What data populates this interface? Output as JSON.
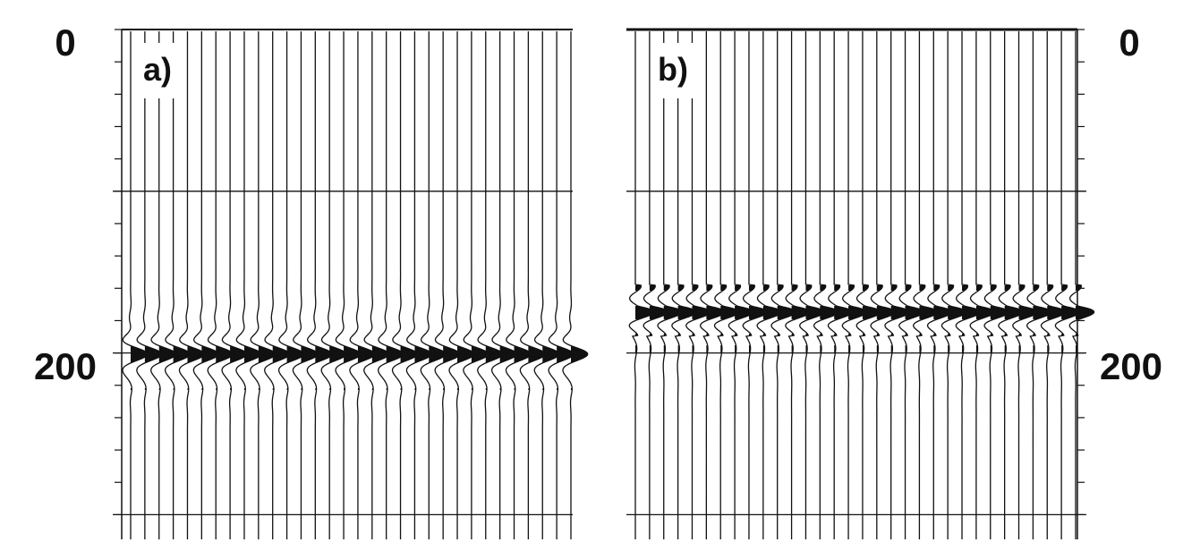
{
  "chart_data": [
    {
      "type": "seismic-wiggle",
      "panel_label": "a)",
      "trace_count": 32,
      "y_axis_side": "left",
      "y_ticks": [
        {
          "value": 0,
          "label": "0"
        },
        {
          "value": 200,
          "label": "200"
        }
      ],
      "ylim": [
        0,
        400
      ],
      "gridlines": [
        100,
        200,
        300,
        400
      ],
      "reflector_time": 200,
      "wavelet": "zero-phase",
      "event_window": [
        130,
        270
      ]
    },
    {
      "type": "seismic-wiggle",
      "panel_label": "b)",
      "trace_count": 32,
      "y_axis_side": "right",
      "y_ticks": [
        {
          "value": 0,
          "label": "0"
        },
        {
          "value": 200,
          "label": "200"
        }
      ],
      "ylim": [
        0,
        400
      ],
      "gridlines": [
        100,
        200,
        300,
        400
      ],
      "reflector_time": 200,
      "wavelet": "minimum-phase",
      "event_window": [
        145,
        270
      ]
    }
  ],
  "colors": {
    "ink": "#111111",
    "background": "#ffffff"
  }
}
